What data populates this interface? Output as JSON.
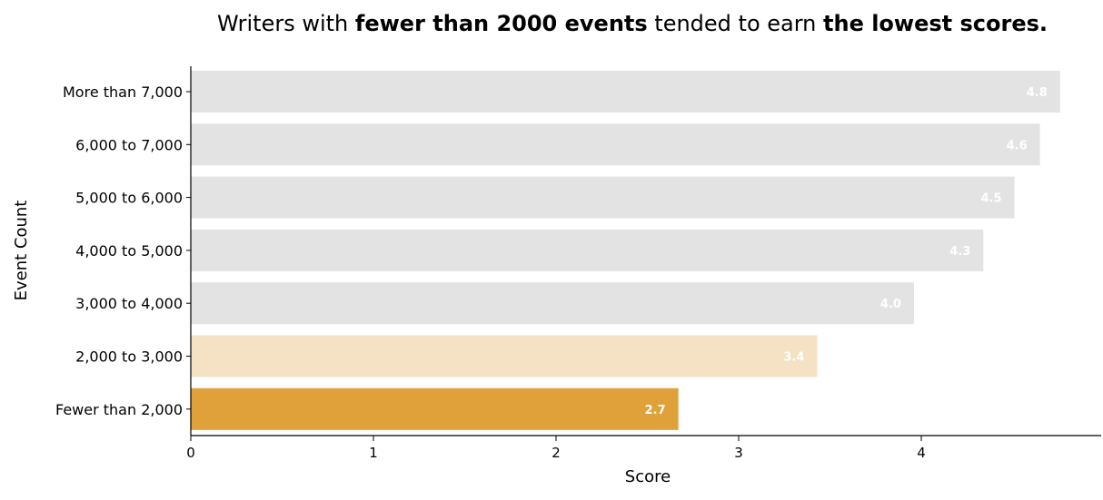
{
  "title_parts": [
    {
      "text": "Writers with ",
      "bold": false
    },
    {
      "text": "fewer than 2000 events",
      "bold": true
    },
    {
      "text": " tended to earn ",
      "bold": false
    },
    {
      "text": "the lowest scores.",
      "bold": true
    }
  ],
  "colors": {
    "default_bar": "#e3e3e3",
    "highlight_light": "#f5e1c3",
    "highlight_strong": "#e0a03a",
    "value_label": "#ffffff",
    "axis": "#000000"
  },
  "chart_data": {
    "type": "bar",
    "orientation": "horizontal",
    "title": "Writers with fewer than 2000 events tended to earn the lowest scores.",
    "xlabel": "Score",
    "ylabel": "Event Count",
    "xlim": [
      0,
      5
    ],
    "x_ticks": [
      "0",
      "1",
      "2",
      "3",
      "4"
    ],
    "grid": false,
    "categories": [
      "More than 7,000",
      "6,000 to 7,000",
      "5,000 to 6,000",
      "4,000 to 5,000",
      "3,000 to 4,000",
      "2,000 to 3,000",
      "Fewer than 2,000"
    ],
    "values": [
      4.76,
      4.65,
      4.51,
      4.34,
      3.96,
      3.43,
      2.67
    ],
    "data_labels": [
      "4.8",
      "4.6",
      "4.5",
      "4.3",
      "4.0",
      "3.4",
      "2.7"
    ],
    "bar_colors": [
      "#e3e3e3",
      "#e3e3e3",
      "#e3e3e3",
      "#e3e3e3",
      "#e3e3e3",
      "#f5e1c3",
      "#e0a03a"
    ]
  }
}
